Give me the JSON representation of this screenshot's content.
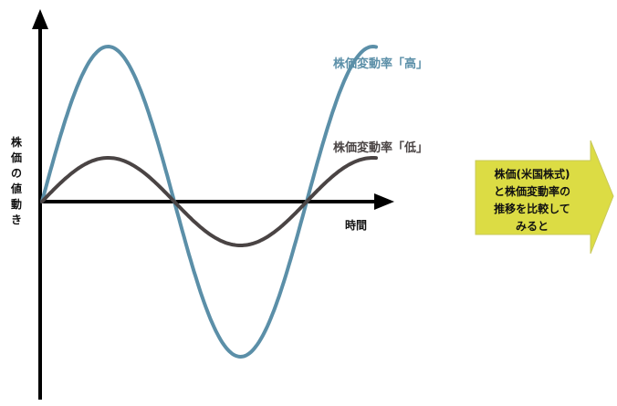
{
  "y_axis_label": "株価の値動き",
  "x_axis_label": "時間",
  "series": [
    {
      "name": "株価変動率「高」",
      "color": "#5b8fa8",
      "amplitude": "high"
    },
    {
      "name": "株価変動率「低」",
      "color": "#4a4444",
      "amplitude": "low"
    }
  ],
  "callout": {
    "lines": [
      "株価(米国株式)",
      "と株価変動率の",
      "推移を比較して",
      "みると"
    ],
    "fill": "#dcdc44",
    "border": "#c9c95a"
  },
  "axis_color": "#000000"
}
